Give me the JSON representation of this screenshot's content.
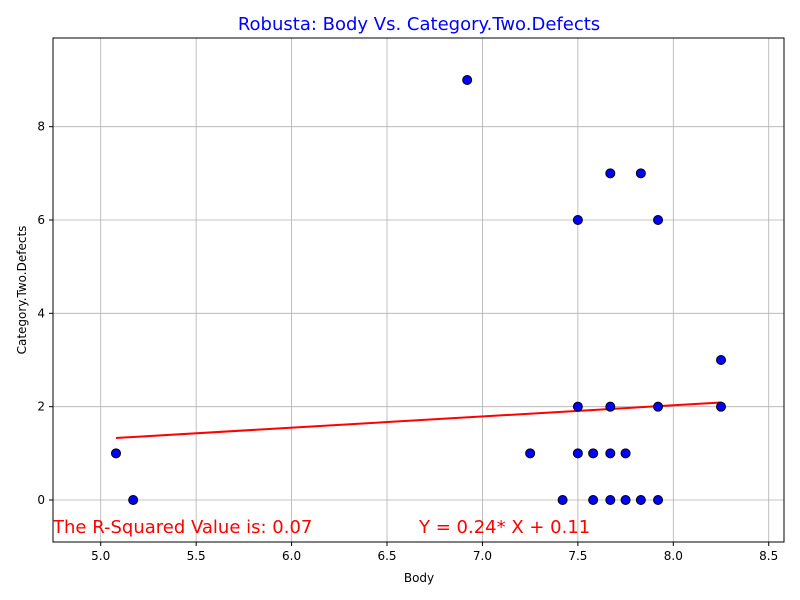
{
  "chart_data": {
    "type": "scatter",
    "title": "Robusta: Body Vs. Category.Two.Defects",
    "xlabel": "Body",
    "ylabel": "Category.Two.Defects",
    "xlim": [
      4.75,
      8.58
    ],
    "ylim": [
      -0.9,
      9.9
    ],
    "x_ticks": [
      "5.0",
      "5.5",
      "6.0",
      "6.5",
      "7.0",
      "7.5",
      "8.0",
      "8.5"
    ],
    "y_ticks": [
      "0",
      "2",
      "4",
      "6",
      "8"
    ],
    "grid": true,
    "points": [
      {
        "x": 5.08,
        "y": 1
      },
      {
        "x": 5.17,
        "y": 0
      },
      {
        "x": 6.92,
        "y": 9
      },
      {
        "x": 7.25,
        "y": 1
      },
      {
        "x": 7.42,
        "y": 0
      },
      {
        "x": 7.5,
        "y": 6
      },
      {
        "x": 7.5,
        "y": 2
      },
      {
        "x": 7.5,
        "y": 1
      },
      {
        "x": 7.58,
        "y": 1
      },
      {
        "x": 7.58,
        "y": 0
      },
      {
        "x": 7.67,
        "y": 7
      },
      {
        "x": 7.67,
        "y": 2
      },
      {
        "x": 7.67,
        "y": 1
      },
      {
        "x": 7.67,
        "y": 0
      },
      {
        "x": 7.75,
        "y": 1
      },
      {
        "x": 7.75,
        "y": 0
      },
      {
        "x": 7.83,
        "y": 7
      },
      {
        "x": 7.83,
        "y": 0
      },
      {
        "x": 7.92,
        "y": 6
      },
      {
        "x": 7.92,
        "y": 2
      },
      {
        "x": 7.92,
        "y": 0
      },
      {
        "x": 8.25,
        "y": 3
      },
      {
        "x": 8.25,
        "y": 2
      }
    ],
    "regression": {
      "slope": 0.24,
      "intercept": 0.11,
      "x_range": [
        5.08,
        8.25
      ],
      "color": "#ff0000"
    },
    "colors": {
      "point_fill": "#0000ff",
      "point_edge": "#000000",
      "title": "#0000ff",
      "annotation": "#ff0000",
      "grid": "#b0b0b0"
    },
    "annotations": {
      "r_squared": "The R-Squared Value is: 0.07",
      "equation": "Y = 0.24* X + 0.11"
    }
  }
}
